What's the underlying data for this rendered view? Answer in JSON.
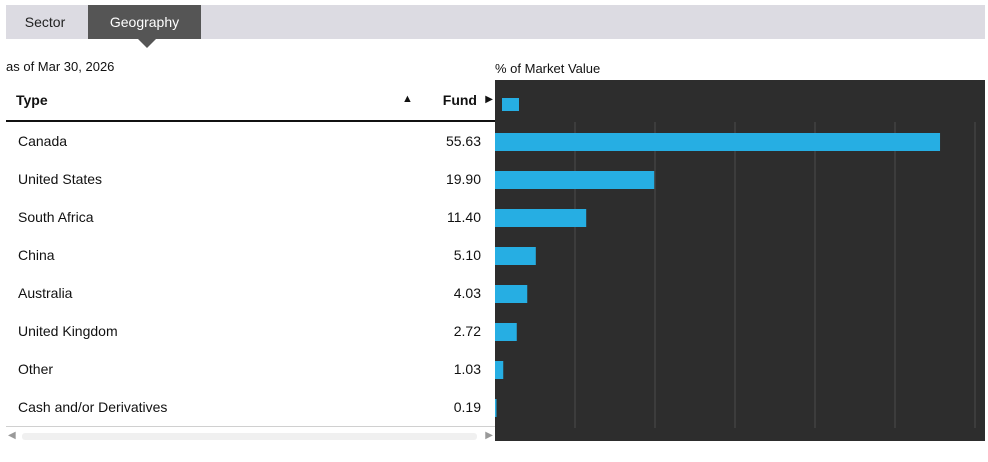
{
  "tabs": [
    {
      "label": "Sector",
      "active": false
    },
    {
      "label": "Geography",
      "active": true
    }
  ],
  "as_of": "as of Mar 30, 2026",
  "table": {
    "col_type": "Type",
    "col_fund": "Fund",
    "sort_glyph": "▲",
    "fund_glyph": "▶",
    "rows": [
      {
        "name": "Canada",
        "value": "55.63"
      },
      {
        "name": "United States",
        "value": "19.90"
      },
      {
        "name": "South Africa",
        "value": "11.40"
      },
      {
        "name": "China",
        "value": "5.10"
      },
      {
        "name": "Australia",
        "value": "4.03"
      },
      {
        "name": "United Kingdom",
        "value": "2.72"
      },
      {
        "name": "Other",
        "value": "1.03"
      },
      {
        "name": "Cash and/or Derivatives",
        "value": "0.19"
      }
    ]
  },
  "scroll": {
    "left_glyph": "◀",
    "right_glyph": "▶"
  },
  "colors": {
    "bar": "#26aee3",
    "chart_bg": "#2d2d2d",
    "grid": "#4a4a4a",
    "active_tab": "#555555"
  },
  "chart_data": {
    "type": "bar",
    "orientation": "horizontal",
    "title": "% of Market Value",
    "categories": [
      "Canada",
      "United States",
      "South Africa",
      "China",
      "Australia",
      "United Kingdom",
      "Other",
      "Cash and/or Derivatives"
    ],
    "series": [
      {
        "values": [
          55.63,
          19.9,
          11.4,
          5.1,
          4.03,
          2.72,
          1.03,
          0.19
        ]
      }
    ],
    "xlim": [
      0,
      60
    ],
    "grid": true,
    "legend": "top-left"
  }
}
